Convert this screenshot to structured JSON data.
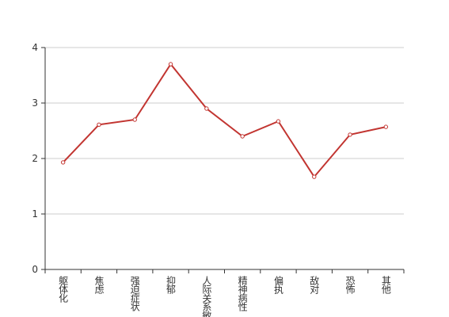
{
  "chart_data": {
    "type": "line",
    "categories": [
      "躯体化",
      "焦虑",
      "强迫症状",
      "抑郁",
      "人际关系敏感",
      "精神病性",
      "偏执",
      "敌对",
      "恐怖",
      "其他"
    ],
    "series": [
      {
        "color": "#c23531",
        "values": [
          1.93,
          2.61,
          2.7,
          3.7,
          2.9,
          2.4,
          2.67,
          1.67,
          2.43,
          2.57
        ]
      }
    ],
    "ylim": [
      0,
      4
    ],
    "yticks": [
      0,
      1,
      2,
      3,
      4
    ],
    "grid": true
  }
}
